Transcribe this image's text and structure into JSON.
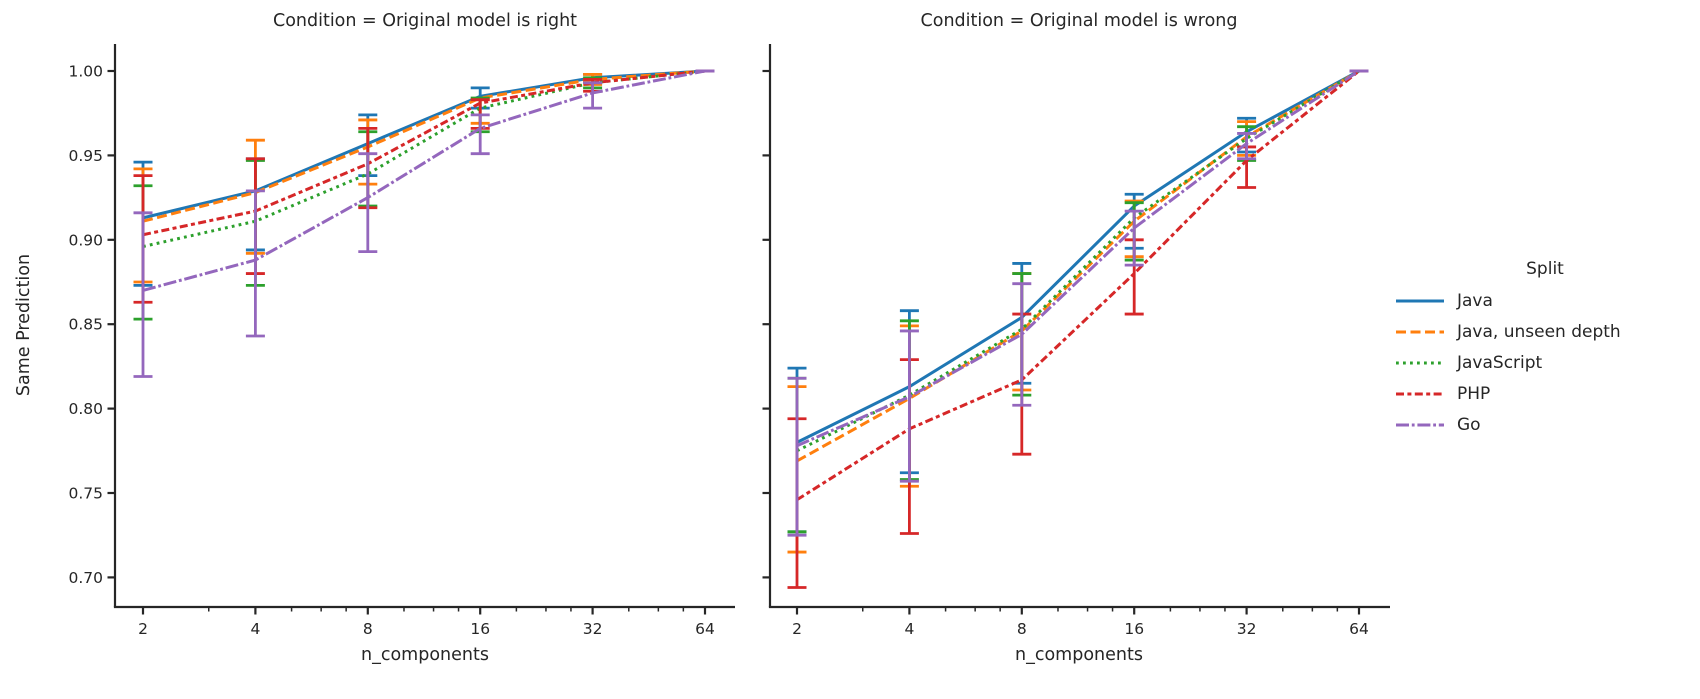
{
  "figure": {
    "panel_titles": [
      "Condition = Original model is right",
      "Condition = Original model is wrong"
    ],
    "ylabel": "Same Prediction",
    "xlabel": "n_components",
    "legend_title": "Split",
    "text_color": "#262626",
    "background": "#ffffff"
  },
  "chart_data": [
    {
      "type": "line",
      "title": "Condition = Original model is right",
      "xlabel": "n_components",
      "ylabel": "Same Prediction",
      "x_scale": "log2",
      "x": [
        2,
        4,
        8,
        16,
        32,
        64
      ],
      "xticklabels": [
        "2",
        "4",
        "8",
        "16",
        "32",
        "64"
      ],
      "minor_xticks": [
        3,
        5,
        6,
        7,
        10,
        12,
        14,
        20,
        24,
        28,
        40,
        48,
        56
      ],
      "ylim": [
        0.683,
        1.016
      ],
      "yticks": [
        0.7,
        0.75,
        0.8,
        0.85,
        0.9,
        0.95,
        1.0
      ],
      "yticklabels": [
        "0.70",
        "0.75",
        "0.80",
        "0.85",
        "0.90",
        "0.95",
        "1.00"
      ],
      "grid": false,
      "legend_position": "right-of-figure",
      "series": [
        {
          "name": "Java",
          "color": "#1f77b4",
          "dash": "solid",
          "values": [
            0.913,
            0.929,
            0.957,
            0.985,
            0.996,
            1.0
          ],
          "err_lo": [
            0.873,
            0.894,
            0.938,
            0.978,
            0.993,
            1.0
          ],
          "err_hi": [
            0.946,
            0.948,
            0.974,
            0.99,
            0.998,
            1.0
          ]
        },
        {
          "name": "Java, unseen depth",
          "color": "#ff7f0e",
          "dash": "dashed",
          "values": [
            0.911,
            0.928,
            0.955,
            0.984,
            0.995,
            1.0
          ],
          "err_lo": [
            0.875,
            0.892,
            0.933,
            0.969,
            0.992,
            1.0
          ],
          "err_hi": [
            0.942,
            0.959,
            0.971,
            0.983,
            0.998,
            1.0
          ]
        },
        {
          "name": "JavaScript",
          "color": "#2ca02c",
          "dash": "dotted",
          "values": [
            0.896,
            0.911,
            0.939,
            0.978,
            0.993,
            1.0
          ],
          "err_lo": [
            0.853,
            0.873,
            0.92,
            0.964,
            0.99,
            1.0
          ],
          "err_hi": [
            0.932,
            0.947,
            0.964,
            0.984,
            0.996,
            1.0
          ]
        },
        {
          "name": "PHP",
          "color": "#d62728",
          "dash": "dashdot",
          "values": [
            0.903,
            0.917,
            0.945,
            0.981,
            0.993,
            1.0
          ],
          "err_lo": [
            0.863,
            0.88,
            0.919,
            0.966,
            0.988,
            1.0
          ],
          "err_hi": [
            0.938,
            0.948,
            0.966,
            0.983,
            0.995,
            1.0
          ]
        },
        {
          "name": "Go",
          "color": "#9467bd",
          "dash": "longdashdot",
          "values": [
            0.87,
            0.888,
            0.925,
            0.966,
            0.987,
            1.0
          ],
          "err_lo": [
            0.819,
            0.843,
            0.893,
            0.951,
            0.978,
            1.0
          ],
          "err_hi": [
            0.916,
            0.929,
            0.951,
            0.974,
            0.993,
            1.0
          ]
        }
      ]
    },
    {
      "type": "line",
      "title": "Condition = Original model is wrong",
      "xlabel": "n_components",
      "ylabel": "Same Prediction",
      "x_scale": "log2",
      "x": [
        2,
        4,
        8,
        16,
        32,
        64
      ],
      "xticklabels": [
        "2",
        "4",
        "8",
        "16",
        "32",
        "64"
      ],
      "minor_xticks": [
        3,
        5,
        6,
        7,
        10,
        12,
        14,
        20,
        24,
        28,
        40,
        48,
        56
      ],
      "ylim": [
        0.683,
        1.016
      ],
      "yticks": [
        0.7,
        0.75,
        0.8,
        0.85,
        0.9,
        0.95,
        1.0
      ],
      "yticklabels": [
        "0.70",
        "0.75",
        "0.80",
        "0.85",
        "0.90",
        "0.95",
        "1.00"
      ],
      "grid": false,
      "legend_position": "right-of-figure",
      "series": [
        {
          "name": "Java",
          "color": "#1f77b4",
          "dash": "solid",
          "values": [
            0.78,
            0.813,
            0.854,
            0.92,
            0.964,
            1.0
          ],
          "err_lo": [
            0.727,
            0.762,
            0.815,
            0.895,
            0.952,
            1.0
          ],
          "err_hi": [
            0.824,
            0.858,
            0.886,
            0.927,
            0.972,
            1.0
          ]
        },
        {
          "name": "Java, unseen depth",
          "color": "#ff7f0e",
          "dash": "dashed",
          "values": [
            0.769,
            0.806,
            0.846,
            0.911,
            0.961,
            1.0
          ],
          "err_lo": [
            0.715,
            0.754,
            0.811,
            0.89,
            0.95,
            1.0
          ],
          "err_hi": [
            0.813,
            0.849,
            0.88,
            0.923,
            0.97,
            1.0
          ]
        },
        {
          "name": "JavaScript",
          "color": "#2ca02c",
          "dash": "dotted",
          "values": [
            0.775,
            0.808,
            0.847,
            0.913,
            0.96,
            1.0
          ],
          "err_lo": [
            0.727,
            0.758,
            0.808,
            0.888,
            0.947,
            1.0
          ],
          "err_hi": [
            0.818,
            0.852,
            0.88,
            0.922,
            0.967,
            1.0
          ]
        },
        {
          "name": "PHP",
          "color": "#d62728",
          "dash": "dashdot",
          "values": [
            0.746,
            0.788,
            0.817,
            0.88,
            0.947,
            1.0
          ],
          "err_lo": [
            0.694,
            0.726,
            0.773,
            0.856,
            0.931,
            1.0
          ],
          "err_hi": [
            0.794,
            0.829,
            0.856,
            0.9,
            0.955,
            1.0
          ]
        },
        {
          "name": "Go",
          "color": "#9467bd",
          "dash": "longdashdot",
          "values": [
            0.778,
            0.807,
            0.844,
            0.907,
            0.957,
            1.0
          ],
          "err_lo": [
            0.725,
            0.757,
            0.802,
            0.885,
            0.948,
            1.0
          ],
          "err_hi": [
            0.818,
            0.846,
            0.874,
            0.917,
            0.963,
            1.0
          ]
        }
      ]
    }
  ]
}
